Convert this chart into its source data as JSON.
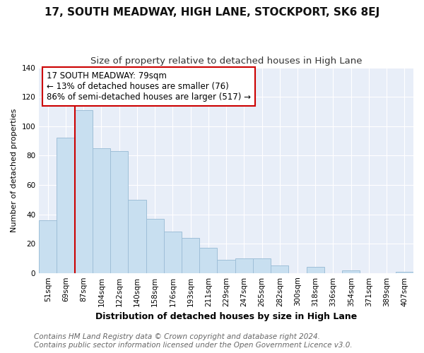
{
  "title": "17, SOUTH MEADWAY, HIGH LANE, STOCKPORT, SK6 8EJ",
  "subtitle": "Size of property relative to detached houses in High Lane",
  "xlabel": "Distribution of detached houses by size in High Lane",
  "ylabel": "Number of detached properties",
  "bar_color": "#c8dff0",
  "bar_edgecolor": "#9fbfd8",
  "vline_color": "#cc0000",
  "vline_x": 1.5,
  "categories": [
    "51sqm",
    "69sqm",
    "87sqm",
    "104sqm",
    "122sqm",
    "140sqm",
    "158sqm",
    "176sqm",
    "193sqm",
    "211sqm",
    "229sqm",
    "247sqm",
    "265sqm",
    "282sqm",
    "300sqm",
    "318sqm",
    "336sqm",
    "354sqm",
    "371sqm",
    "389sqm",
    "407sqm"
  ],
  "values": [
    36,
    92,
    111,
    85,
    83,
    50,
    37,
    28,
    24,
    17,
    9,
    10,
    10,
    5,
    0,
    4,
    0,
    2,
    0,
    0,
    1
  ],
  "annotation_title": "17 SOUTH MEADWAY: 79sqm",
  "annotation_line1": "← 13% of detached houses are smaller (76)",
  "annotation_line2": "86% of semi-detached houses are larger (517) →",
  "ylim": [
    0,
    140
  ],
  "yticks": [
    0,
    20,
    40,
    60,
    80,
    100,
    120,
    140
  ],
  "footer_line1": "Contains HM Land Registry data © Crown copyright and database right 2024.",
  "footer_line2": "Contains public sector information licensed under the Open Government Licence v3.0.",
  "background_color": "#ffffff",
  "plot_background": "#e8eef8",
  "grid_color": "#ffffff",
  "title_fontsize": 11,
  "subtitle_fontsize": 9.5,
  "xlabel_fontsize": 9,
  "ylabel_fontsize": 8,
  "tick_fontsize": 7.5,
  "footer_fontsize": 7.5,
  "ann_fontsize": 8.5
}
